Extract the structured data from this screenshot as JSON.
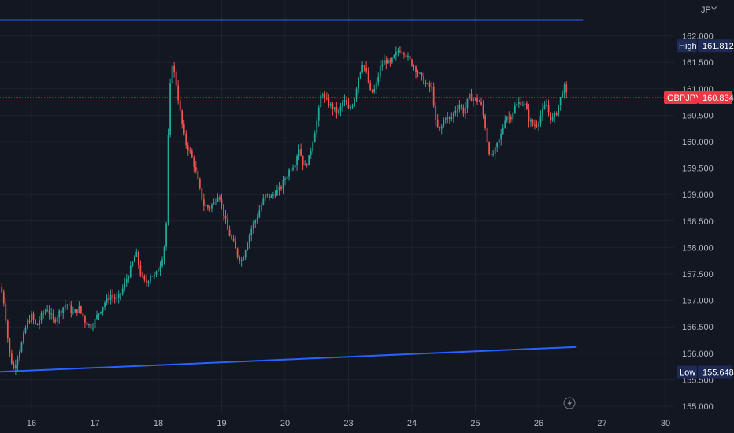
{
  "chart_data": {
    "type": "candlestick",
    "symbol": "GBPJPY",
    "currency": "JPY",
    "last_price": 160.834,
    "high": {
      "label": "High",
      "value": 161.812
    },
    "low": {
      "label": "Low",
      "value": 155.648
    },
    "y_ticks": [
      155.0,
      155.5,
      156.0,
      156.5,
      157.0,
      157.5,
      158.0,
      158.5,
      159.0,
      159.5,
      160.0,
      160.5,
      161.0,
      161.5,
      162.0
    ],
    "y_tick_labels": [
      "155.000",
      "155.500",
      "156.000",
      "156.500",
      "157.000",
      "157.500",
      "158.000",
      "158.500",
      "159.000",
      "159.500",
      "160.000",
      "160.500",
      "161.000",
      "161.500",
      "162.000"
    ],
    "ylim": [
      154.94,
      162.53
    ],
    "x_ticks": [
      {
        "label": "16",
        "day": 16
      },
      {
        "label": "17",
        "day": 17
      },
      {
        "label": "18",
        "day": 18
      },
      {
        "label": "19",
        "day": 19
      },
      {
        "label": "20",
        "day": 20
      },
      {
        "label": "23",
        "day": 21
      },
      {
        "label": "24",
        "day": 22
      },
      {
        "label": "25",
        "day": 23
      },
      {
        "label": "26",
        "day": 24
      },
      {
        "label": "27",
        "day": 25
      },
      {
        "label": "30",
        "day": 26
      }
    ],
    "xlim": [
      15.5,
      26.6
    ],
    "trendlines": [
      {
        "from": {
          "x": 15.5,
          "y": 162.3
        },
        "to": {
          "x": 24.7,
          "y": 162.3
        },
        "color": "#2962ff"
      },
      {
        "from": {
          "x": 15.5,
          "y": 155.65
        },
        "to": {
          "x": 24.6,
          "y": 156.12
        },
        "color": "#2962ff"
      }
    ],
    "close_path": [
      [
        15.5,
        157.25
      ],
      [
        15.55,
        157.1
      ],
      [
        15.6,
        156.6
      ],
      [
        15.65,
        156.0
      ],
      [
        15.72,
        155.7
      ],
      [
        15.78,
        155.95
      ],
      [
        15.85,
        156.2
      ],
      [
        15.92,
        156.55
      ],
      [
        16.0,
        156.7
      ],
      [
        16.08,
        156.5
      ],
      [
        16.15,
        156.7
      ],
      [
        16.25,
        156.85
      ],
      [
        16.35,
        156.6
      ],
      [
        16.45,
        156.8
      ],
      [
        16.55,
        156.95
      ],
      [
        16.65,
        156.75
      ],
      [
        16.75,
        156.85
      ],
      [
        16.85,
        156.6
      ],
      [
        16.95,
        156.5
      ],
      [
        17.05,
        156.75
      ],
      [
        17.15,
        156.95
      ],
      [
        17.25,
        157.1
      ],
      [
        17.35,
        157.0
      ],
      [
        17.45,
        157.25
      ],
      [
        17.55,
        157.55
      ],
      [
        17.65,
        157.9
      ],
      [
        17.72,
        157.5
      ],
      [
        17.8,
        157.3
      ],
      [
        17.88,
        157.5
      ],
      [
        17.95,
        157.45
      ],
      [
        18.05,
        157.75
      ],
      [
        18.12,
        158.2
      ],
      [
        18.17,
        160.8
      ],
      [
        18.22,
        161.5
      ],
      [
        18.28,
        161.1
      ],
      [
        18.35,
        160.5
      ],
      [
        18.42,
        160.0
      ],
      [
        18.5,
        159.8
      ],
      [
        18.58,
        159.5
      ],
      [
        18.65,
        159.1
      ],
      [
        18.72,
        158.8
      ],
      [
        18.8,
        158.75
      ],
      [
        18.88,
        158.85
      ],
      [
        18.95,
        159.05
      ],
      [
        19.02,
        158.7
      ],
      [
        19.1,
        158.3
      ],
      [
        19.18,
        158.1
      ],
      [
        19.25,
        157.85
      ],
      [
        19.32,
        157.75
      ],
      [
        19.4,
        158.1
      ],
      [
        19.48,
        158.4
      ],
      [
        19.55,
        158.55
      ],
      [
        19.62,
        158.8
      ],
      [
        19.7,
        159.0
      ],
      [
        19.78,
        158.95
      ],
      [
        19.85,
        159.05
      ],
      [
        19.92,
        159.1
      ],
      [
        20.0,
        159.3
      ],
      [
        20.08,
        159.5
      ],
      [
        20.15,
        159.6
      ],
      [
        20.22,
        159.9
      ],
      [
        20.3,
        159.5
      ],
      [
        20.38,
        159.7
      ],
      [
        20.45,
        160.1
      ],
      [
        20.52,
        160.5
      ],
      [
        20.58,
        161.0
      ],
      [
        20.62,
        160.8
      ],
      [
        20.7,
        160.7
      ],
      [
        20.78,
        160.6
      ],
      [
        20.85,
        160.55
      ],
      [
        20.92,
        160.8
      ],
      [
        21.0,
        160.6
      ],
      [
        21.08,
        160.75
      ],
      [
        21.15,
        161.2
      ],
      [
        21.22,
        161.5
      ],
      [
        21.28,
        161.3
      ],
      [
        21.35,
        160.9
      ],
      [
        21.42,
        161.0
      ],
      [
        21.5,
        161.4
      ],
      [
        21.58,
        161.55
      ],
      [
        21.65,
        161.45
      ],
      [
        21.72,
        161.6
      ],
      [
        21.8,
        161.75
      ],
      [
        21.88,
        161.7
      ],
      [
        21.95,
        161.55
      ],
      [
        22.02,
        161.45
      ],
      [
        22.1,
        161.3
      ],
      [
        22.18,
        161.15
      ],
      [
        22.25,
        161.05
      ],
      [
        22.32,
        161.0
      ],
      [
        22.38,
        160.3
      ],
      [
        22.45,
        160.2
      ],
      [
        22.52,
        160.5
      ],
      [
        22.6,
        160.4
      ],
      [
        22.68,
        160.6
      ],
      [
        22.75,
        160.7
      ],
      [
        22.82,
        160.55
      ],
      [
        22.9,
        160.85
      ],
      [
        23.0,
        160.8
      ],
      [
        23.08,
        160.75
      ],
      [
        23.15,
        160.35
      ],
      [
        23.2,
        159.9
      ],
      [
        23.25,
        159.7
      ],
      [
        23.32,
        159.85
      ],
      [
        23.4,
        160.1
      ],
      [
        23.48,
        160.5
      ],
      [
        23.55,
        160.45
      ],
      [
        23.62,
        160.65
      ],
      [
        23.7,
        160.75
      ],
      [
        23.78,
        160.7
      ],
      [
        23.85,
        160.4
      ],
      [
        23.92,
        160.3
      ],
      [
        23.98,
        160.35
      ],
      [
        24.05,
        160.55
      ],
      [
        24.12,
        160.7
      ],
      [
        24.2,
        160.4
      ],
      [
        24.28,
        160.55
      ],
      [
        24.35,
        160.85
      ],
      [
        24.4,
        161.05
      ],
      [
        24.45,
        160.83
      ]
    ]
  }
}
